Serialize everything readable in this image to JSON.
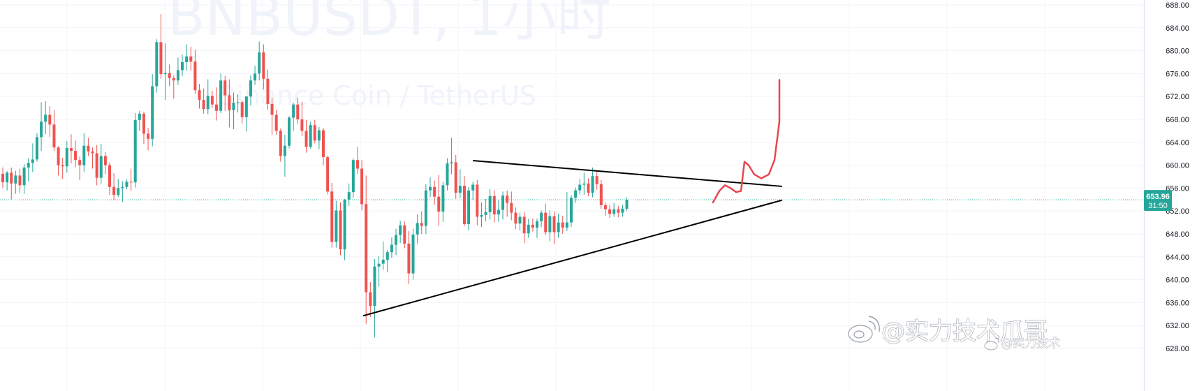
{
  "chart_data": {
    "type": "candlestick",
    "title": "BNBUSDT, 1小时",
    "subtitle": "Binance Coin / TetherUS",
    "y_ticks": [
      "688.00",
      "684.00",
      "680.00",
      "676.00",
      "672.00",
      "668.00",
      "664.00",
      "660.00",
      "656.00",
      "652.00",
      "648.00",
      "644.00",
      "640.00",
      "636.00",
      "632.00",
      "628.00"
    ],
    "ylim": [
      627,
      689
    ],
    "last_price": "653.96",
    "countdown": "31:50",
    "colors": {
      "up": "#26a69a",
      "down": "#ef5350",
      "price_line": "#26a69a",
      "sketch": "#e8474f"
    },
    "candles": [
      [
        658.5,
        659.6,
        656.0,
        657.0
      ],
      [
        657.0,
        659.0,
        655.6,
        658.7
      ],
      [
        658.7,
        659.6,
        654.0,
        656.8
      ],
      [
        656.8,
        659.0,
        655.0,
        658.2
      ],
      [
        658.2,
        659.4,
        655.2,
        656.5
      ],
      [
        656.5,
        660.2,
        655.0,
        659.6
      ],
      [
        659.6,
        661.2,
        657.2,
        660.4
      ],
      [
        660.4,
        663.8,
        658.8,
        661.0
      ],
      [
        661.0,
        665.6,
        660.6,
        664.9
      ],
      [
        664.9,
        671.0,
        662.5,
        667.6
      ],
      [
        667.6,
        671.2,
        665.4,
        668.8
      ],
      [
        668.8,
        670.3,
        664.9,
        667.1
      ],
      [
        667.1,
        669.6,
        662.5,
        663.1
      ],
      [
        663.1,
        663.3,
        658.2,
        660.0
      ],
      [
        660.0,
        661.3,
        657.6,
        659.8
      ],
      [
        659.8,
        664.2,
        658.7,
        663.0
      ],
      [
        663.0,
        665.4,
        660.3,
        662.5
      ],
      [
        662.5,
        664.3,
        659.6,
        660.9
      ],
      [
        660.9,
        661.5,
        657.4,
        660.0
      ],
      [
        660.0,
        665.6,
        658.8,
        663.4
      ],
      [
        663.4,
        664.8,
        661.6,
        662.4
      ],
      [
        662.4,
        663.1,
        659.4,
        662.1
      ],
      [
        662.1,
        663.5,
        656.5,
        657.8
      ],
      [
        657.8,
        663.7,
        656.7,
        661.6
      ],
      [
        661.6,
        662.3,
        658.4,
        660.0
      ],
      [
        660.0,
        660.5,
        654.8,
        656.2
      ],
      [
        656.2,
        658.6,
        653.9,
        654.8
      ],
      [
        654.8,
        657.6,
        654.4,
        656.0
      ],
      [
        656.0,
        657.2,
        653.6,
        656.2
      ],
      [
        656.2,
        657.5,
        655.8,
        657.1
      ],
      [
        657.1,
        659.4,
        655.5,
        657.0
      ],
      [
        657.0,
        669.1,
        656.1,
        667.9
      ],
      [
        667.9,
        669.5,
        666.0,
        669.0
      ],
      [
        669.0,
        669.3,
        663.7,
        665.5
      ],
      [
        665.5,
        666.5,
        662.6,
        664.6
      ],
      [
        664.6,
        675.9,
        663.3,
        673.8
      ],
      [
        673.8,
        682.0,
        672.7,
        681.5
      ],
      [
        681.5,
        686.4,
        675.1,
        675.9
      ],
      [
        675.9,
        681.3,
        671.4,
        676.1
      ],
      [
        676.1,
        677.6,
        673.8,
        675.2
      ],
      [
        675.2,
        675.7,
        671.6,
        674.8
      ],
      [
        674.8,
        678.8,
        674.0,
        676.6
      ],
      [
        676.6,
        679.3,
        675.6,
        678.0
      ],
      [
        678.0,
        681.1,
        676.5,
        679.0
      ],
      [
        679.0,
        680.7,
        676.5,
        678.1
      ],
      [
        678.1,
        680.2,
        672.5,
        673.1
      ],
      [
        673.1,
        674.2,
        669.9,
        671.4
      ],
      [
        671.4,
        673.4,
        669.0,
        669.8
      ],
      [
        669.8,
        675.0,
        668.9,
        672.1
      ],
      [
        672.1,
        673.0,
        670.0,
        670.6
      ],
      [
        670.6,
        673.6,
        667.8,
        669.5
      ],
      [
        669.5,
        676.0,
        669.1,
        674.8
      ],
      [
        674.8,
        675.6,
        669.5,
        672.2
      ],
      [
        672.2,
        675.0,
        666.6,
        669.6
      ],
      [
        669.6,
        672.7,
        666.3,
        670.9
      ],
      [
        670.9,
        672.4,
        669.2,
        671.0
      ],
      [
        671.0,
        671.3,
        667.3,
        668.4
      ],
      [
        668.4,
        672.0,
        665.9,
        672.0
      ],
      [
        672.0,
        675.7,
        670.4,
        674.8
      ],
      [
        674.8,
        677.4,
        674.0,
        676.0
      ],
      [
        676.0,
        681.6,
        674.8,
        679.7
      ],
      [
        679.7,
        681.1,
        673.2,
        675.1
      ],
      [
        675.1,
        676.7,
        669.7,
        670.7
      ],
      [
        670.7,
        671.8,
        665.3,
        668.8
      ],
      [
        668.8,
        669.7,
        665.3,
        666.0
      ],
      [
        666.0,
        666.4,
        660.6,
        661.6
      ],
      [
        661.6,
        665.3,
        658.0,
        663.4
      ],
      [
        663.4,
        668.6,
        662.9,
        668.3
      ],
      [
        668.3,
        670.9,
        666.0,
        670.6
      ],
      [
        670.6,
        671.8,
        667.2,
        668.0
      ],
      [
        668.0,
        671.1,
        665.1,
        666.0
      ],
      [
        666.0,
        667.9,
        662.2,
        663.2
      ],
      [
        663.2,
        667.6,
        662.9,
        667.0
      ],
      [
        667.0,
        667.9,
        663.8,
        664.3
      ],
      [
        664.3,
        666.7,
        662.8,
        666.1
      ],
      [
        666.1,
        666.5,
        660.0,
        661.4
      ],
      [
        661.4,
        661.7,
        654.9,
        655.4
      ],
      [
        655.4,
        656.9,
        645.6,
        646.6
      ],
      [
        646.6,
        653.8,
        645.6,
        652.1
      ],
      [
        652.1,
        653.5,
        644.3,
        645.3
      ],
      [
        645.3,
        654.1,
        643.4,
        654.0
      ],
      [
        654.0,
        656.8,
        652.9,
        655.3
      ],
      [
        655.3,
        661.2,
        654.3,
        660.9
      ],
      [
        660.9,
        663.2,
        658.5,
        659.4
      ],
      [
        659.4,
        660.9,
        652.1,
        653.2
      ],
      [
        653.2,
        658.2,
        632.3,
        637.8
      ],
      [
        637.8,
        639.6,
        633.5,
        635.4
      ],
      [
        635.4,
        643.6,
        629.9,
        642.3
      ],
      [
        642.3,
        644.1,
        638.8,
        642.8
      ],
      [
        642.8,
        646.7,
        641.7,
        643.5
      ],
      [
        643.5,
        645.2,
        641.3,
        644.8
      ],
      [
        644.8,
        647.4,
        643.8,
        646.1
      ],
      [
        646.1,
        648.9,
        644.3,
        647.8
      ],
      [
        647.8,
        650.3,
        646.4,
        649.5
      ],
      [
        649.5,
        650.2,
        645.5,
        646.3
      ],
      [
        646.3,
        648.5,
        639.2,
        641.1
      ],
      [
        641.1,
        648.9,
        640.0,
        647.9
      ],
      [
        647.9,
        651.4,
        646.3,
        649.9
      ],
      [
        649.9,
        651.9,
        648.0,
        649.4
      ],
      [
        649.4,
        656.7,
        648.0,
        655.6
      ],
      [
        655.6,
        657.9,
        654.4,
        656.2
      ],
      [
        656.2,
        657.3,
        653.1,
        654.5
      ],
      [
        654.5,
        658.3,
        649.4,
        651.9
      ],
      [
        651.9,
        657.1,
        650.1,
        656.5
      ],
      [
        656.5,
        661.2,
        655.6,
        660.3
      ],
      [
        660.3,
        664.8,
        658.4,
        660.5
      ],
      [
        660.5,
        661.8,
        654.1,
        655.2
      ],
      [
        655.2,
        659.3,
        654.2,
        656.4
      ],
      [
        656.4,
        658.1,
        649.4,
        649.7
      ],
      [
        649.7,
        656.2,
        648.6,
        655.6
      ],
      [
        655.6,
        657.1,
        653.9,
        656.6
      ],
      [
        656.6,
        657.4,
        649.5,
        651.0
      ],
      [
        651.0,
        653.5,
        649.2,
        651.3
      ],
      [
        651.3,
        654.1,
        650.2,
        651.8
      ],
      [
        651.8,
        655.8,
        650.5,
        654.6
      ],
      [
        654.6,
        655.6,
        650.0,
        651.4
      ],
      [
        651.4,
        653.9,
        650.1,
        652.2
      ],
      [
        652.2,
        655.4,
        650.5,
        654.7
      ],
      [
        654.7,
        655.6,
        651.0,
        653.4
      ],
      [
        653.4,
        655.4,
        650.4,
        651.7
      ],
      [
        651.7,
        652.6,
        648.8,
        649.8
      ],
      [
        649.8,
        651.7,
        648.6,
        651.0
      ],
      [
        651.0,
        651.8,
        646.4,
        648.1
      ],
      [
        648.1,
        650.6,
        647.3,
        649.6
      ],
      [
        649.6,
        650.7,
        648.4,
        649.1
      ],
      [
        649.1,
        650.7,
        647.3,
        650.2
      ],
      [
        650.2,
        652.1,
        649.2,
        651.7
      ],
      [
        651.7,
        653.3,
        647.8,
        648.3
      ],
      [
        648.3,
        652.1,
        646.7,
        651.1
      ],
      [
        651.1,
        651.9,
        646.2,
        648.3
      ],
      [
        648.3,
        651.5,
        647.3,
        650.0
      ],
      [
        650.0,
        651.2,
        648.0,
        649.1
      ],
      [
        649.1,
        655.3,
        648.5,
        650.0
      ],
      [
        650.0,
        654.8,
        649.2,
        654.3
      ],
      [
        654.3,
        656.1,
        653.4,
        655.6
      ],
      [
        655.6,
        657.6,
        654.9,
        656.6
      ],
      [
        656.6,
        658.7,
        654.8,
        656.8
      ],
      [
        656.8,
        657.7,
        654.6,
        655.2
      ],
      [
        655.2,
        659.6,
        654.4,
        658.1
      ],
      [
        658.1,
        659.0,
        655.7,
        656.7
      ],
      [
        656.7,
        657.4,
        652.4,
        653.0
      ],
      [
        653.0,
        653.5,
        651.1,
        652.3
      ],
      [
        652.3,
        653.1,
        650.8,
        651.5
      ],
      [
        651.5,
        653.4,
        651.0,
        652.3
      ],
      [
        652.3,
        652.9,
        650.9,
        651.7
      ],
      [
        651.7,
        653.1,
        651.0,
        652.4
      ],
      [
        652.4,
        654.4,
        652.0,
        653.96
      ]
    ]
  },
  "watermark": {
    "credit_main": "@实力技术爪哥",
    "credit_small": "@实力技术"
  }
}
